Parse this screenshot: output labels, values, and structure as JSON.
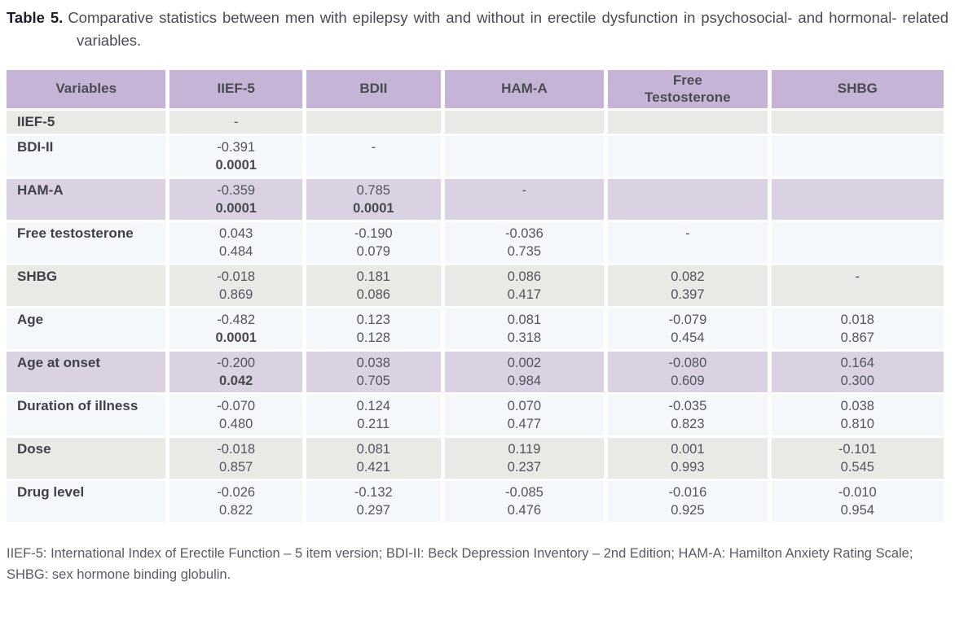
{
  "title": {
    "label": "Table 5.",
    "text": "Comparative statistics between men with epilepsy with and without in erectile dysfunction in psychosocial- and hormonal- related variables."
  },
  "table": {
    "columns": [
      "Variables",
      "IIEF-5",
      "BDII",
      "HAM-A",
      "Free\nTestosterone",
      "SHBG"
    ],
    "rows": [
      {
        "label": "IIEF-5",
        "tone": "gray",
        "cells": [
          {
            "r": "-"
          },
          null,
          null,
          null,
          null
        ]
      },
      {
        "label": "BDI-II",
        "tone": "light",
        "cells": [
          {
            "r": "-0.391",
            "p": "0.0001",
            "p_bold": true
          },
          {
            "r": "-"
          },
          null,
          null,
          null
        ]
      },
      {
        "label": "HAM-A",
        "tone": "purple",
        "cells": [
          {
            "r": "-0.359",
            "p": "0.0001",
            "p_bold": true
          },
          {
            "r": "0.785",
            "p": "0.0001",
            "p_bold": true
          },
          {
            "r": "-"
          },
          null,
          null
        ]
      },
      {
        "label": "Free testosterone",
        "tone": "light",
        "cells": [
          {
            "r": "0.043",
            "p": "0.484"
          },
          {
            "r": "-0.190",
            "p": "0.079"
          },
          {
            "r": "-0.036",
            "p": "0.735"
          },
          {
            "r": "-"
          },
          null
        ]
      },
      {
        "label": "SHBG",
        "tone": "gray",
        "cells": [
          {
            "r": "-0.018",
            "p": "0.869"
          },
          {
            "r": "0.181",
            "p": "0.086"
          },
          {
            "r": "0.086",
            "p": "0.417"
          },
          {
            "r": "0.082",
            "p": "0.397"
          },
          {
            "r": "-"
          }
        ]
      },
      {
        "label": "Age",
        "tone": "light",
        "cells": [
          {
            "r": "-0.482",
            "p": "0.0001",
            "p_bold": true
          },
          {
            "r": "0.123",
            "p": "0.128"
          },
          {
            "r": "0.081",
            "p": "0.318"
          },
          {
            "r": "-0.079",
            "p": "0.454"
          },
          {
            "r": "0.018",
            "p": "0.867"
          }
        ]
      },
      {
        "label": "Age at onset",
        "tone": "purple",
        "cells": [
          {
            "r": "-0.200",
            "p": "0.042",
            "p_bold": true
          },
          {
            "r": "0.038",
            "p": "0.705"
          },
          {
            "r": "0.002",
            "p": "0.984"
          },
          {
            "r": "-0.080",
            "p": "0.609"
          },
          {
            "r": "0.164",
            "p": "0.300"
          }
        ]
      },
      {
        "label": "Duration of illness",
        "tone": "light",
        "cells": [
          {
            "r": "-0.070",
            "p": "0.480"
          },
          {
            "r": "0.124",
            "p": "0.211"
          },
          {
            "r": "0.070",
            "p": "0.477"
          },
          {
            "r": "-0.035",
            "p": "0.823"
          },
          {
            "r": "0.038",
            "p": "0.810"
          }
        ]
      },
      {
        "label": "Dose",
        "tone": "gray",
        "cells": [
          {
            "r": "-0.018",
            "p": "0.857"
          },
          {
            "r": "0.081",
            "p": "0.421"
          },
          {
            "r": "0.119",
            "p": "0.237"
          },
          {
            "r": "0.001",
            "p": "0.993"
          },
          {
            "r": "-0.101",
            "p": "0.545"
          }
        ]
      },
      {
        "label": "Drug level",
        "tone": "light",
        "cells": [
          {
            "r": "-0.026",
            "p": "0.822"
          },
          {
            "r": "-0.132",
            "p": "0.297"
          },
          {
            "r": "-0.085",
            "p": "0.476"
          },
          {
            "r": "-0.016",
            "p": "0.925"
          },
          {
            "r": "-0.010",
            "p": "0.954"
          }
        ]
      }
    ]
  },
  "footnote": "IIEF-5: International Index of Erectile Function – 5 item version; BDI-II: Beck Depression Inventory – 2nd Edition; HAM-A: Hamilton Anxiety Rating Scale; SHBG: sex hormone binding globulin.",
  "colors": {
    "header_bg": "#c5b4d6",
    "row_purple": "#dad1e2",
    "row_gray": "#e9e9e6",
    "row_light": "#f5f8fb"
  }
}
